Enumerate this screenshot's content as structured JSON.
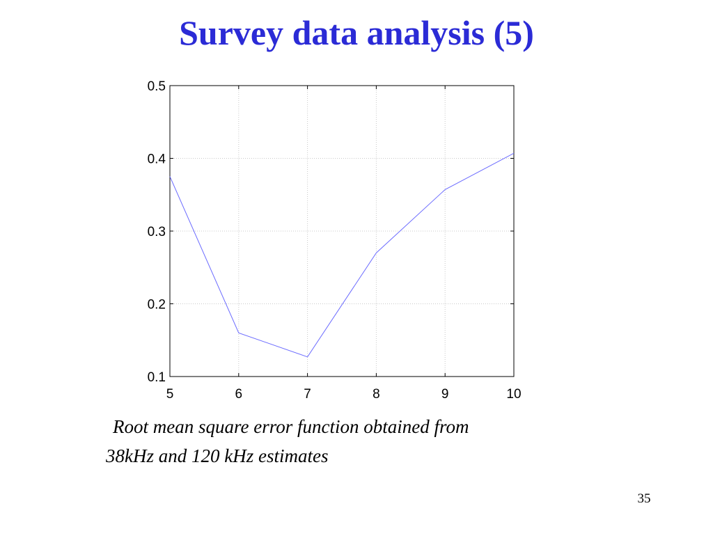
{
  "slide": {
    "title": "Survey data analysis (5)",
    "caption_line1": "Root mean square error function obtained from",
    "caption_line2": "38kHz and 120 kHz estimates",
    "page_number": "35"
  },
  "chart_data": {
    "type": "line",
    "x": [
      5,
      6,
      7,
      8,
      9,
      10
    ],
    "series": [
      {
        "values": [
          0.375,
          0.16,
          0.127,
          0.27,
          0.357,
          0.407
        ]
      }
    ],
    "xlim": [
      5,
      10
    ],
    "ylim": [
      0.1,
      0.5
    ],
    "xticks": [
      5,
      6,
      7,
      8,
      9,
      10
    ],
    "yticks": [
      0.1,
      0.2,
      0.3,
      0.4,
      0.5
    ],
    "xtick_labels": [
      "5",
      "6",
      "7",
      "8",
      "9",
      "10"
    ],
    "ytick_labels": [
      "0.1",
      "0.2",
      "0.3",
      "0.4",
      "0.5"
    ],
    "grid": true,
    "line_color": "#6b6bff",
    "grid_color": "#c8c8c8",
    "title": "",
    "xlabel": "",
    "ylabel": ""
  }
}
